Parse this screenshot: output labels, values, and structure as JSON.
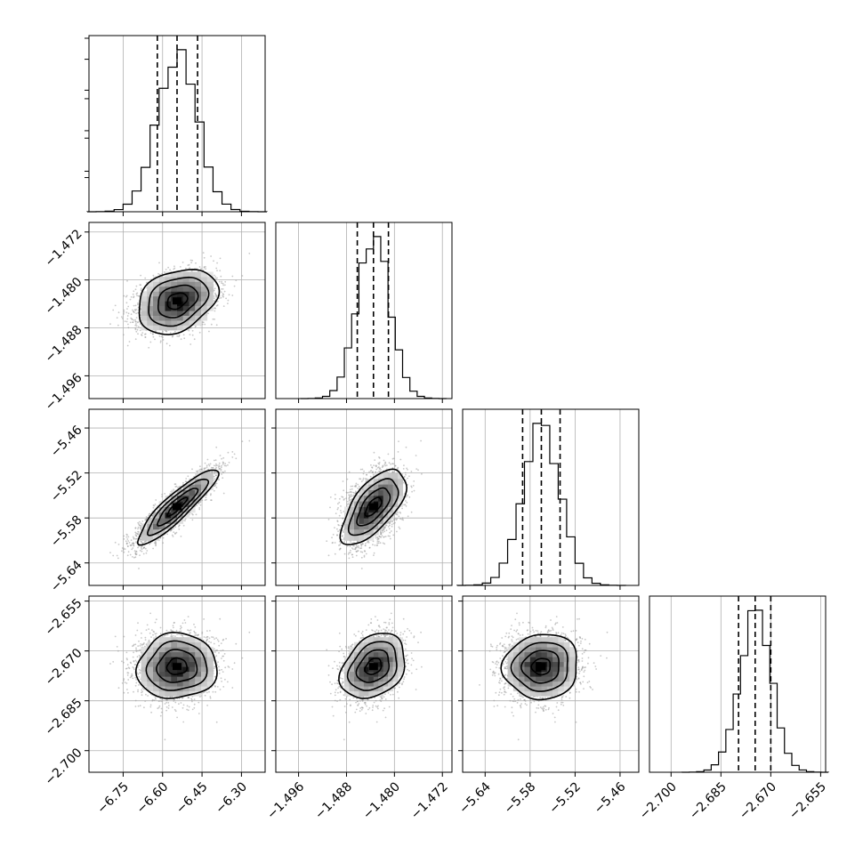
{
  "chart_data": {
    "type": "corner",
    "grid": true,
    "colors": {
      "line": "#000000",
      "grid": "#b0b0b0",
      "scatter": "#9a9a9a"
    },
    "parameters": [
      {
        "mean": -6.545,
        "std": 0.076,
        "q16": -6.62,
        "q50": -6.545,
        "q84": -6.467,
        "range": [
          -6.88,
          -6.21
        ],
        "ticks": [
          -6.75,
          -6.6,
          -6.45,
          -6.3
        ],
        "tick_labels": [
          "−6.75",
          "−6.60",
          "−6.45",
          "−6.30"
        ]
      },
      {
        "mean": -1.4835,
        "std": 0.0027,
        "q16": -1.4862,
        "q50": -1.4835,
        "q84": -1.481,
        "range": [
          -1.4998,
          -1.4704
        ],
        "ticks": [
          -1.496,
          -1.488,
          -1.48,
          -1.472
        ],
        "tick_labels": [
          "−1.496",
          "−1.488",
          "−1.480",
          "−1.472"
        ]
      },
      {
        "mean": -5.565,
        "std": 0.025,
        "q16": -5.59,
        "q50": -5.565,
        "q84": -5.54,
        "range": [
          -5.67,
          -5.435
        ],
        "ticks": [
          -5.64,
          -5.58,
          -5.52,
          -5.46
        ],
        "tick_labels": [
          "−5.64",
          "−5.58",
          "−5.52",
          "−5.46"
        ]
      },
      {
        "mean": -2.6747,
        "std": 0.0049,
        "q16": -2.6797,
        "q50": -2.6747,
        "q84": -2.67,
        "range": [
          -2.7065,
          -2.6535
        ],
        "ticks": [
          -2.7,
          -2.685,
          -2.67,
          -2.655
        ],
        "tick_labels": [
          "−2.700",
          "−2.685",
          "−2.670",
          "−2.655"
        ]
      }
    ],
    "correlations": [
      [
        1.0,
        0.3,
        0.9,
        0.05
      ],
      [
        0.3,
        1.0,
        0.65,
        0.3
      ],
      [
        0.9,
        0.65,
        1.0,
        0.05
      ],
      [
        0.05,
        0.3,
        0.05,
        1.0
      ]
    ],
    "histogram_bins": 20,
    "contour_levels_sigma": [
      0.5,
      1.0,
      1.5,
      2.0
    ],
    "scatter_points": 2500
  }
}
